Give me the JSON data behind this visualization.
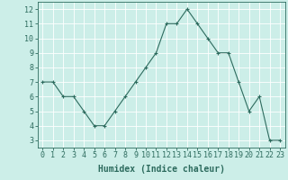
{
  "x": [
    0,
    1,
    2,
    3,
    4,
    5,
    6,
    7,
    8,
    9,
    10,
    11,
    12,
    13,
    14,
    15,
    16,
    17,
    18,
    19,
    20,
    21,
    22,
    23
  ],
  "y": [
    7,
    7,
    6,
    6,
    5,
    4,
    4,
    5,
    6,
    7,
    8,
    9,
    11,
    11,
    12,
    11,
    10,
    9,
    9,
    7,
    5,
    6,
    3,
    3
  ],
  "line_color": "#2d6b5e",
  "marker": "+",
  "marker_size": 3,
  "background_color": "#cceee8",
  "grid_color": "#ffffff",
  "xlabel": "Humidex (Indice chaleur)",
  "xlim": [
    -0.5,
    23.5
  ],
  "ylim": [
    2.5,
    12.5
  ],
  "yticks": [
    3,
    4,
    5,
    6,
    7,
    8,
    9,
    10,
    11,
    12
  ],
  "xticks": [
    0,
    1,
    2,
    3,
    4,
    5,
    6,
    7,
    8,
    9,
    10,
    11,
    12,
    13,
    14,
    15,
    16,
    17,
    18,
    19,
    20,
    21,
    22,
    23
  ],
  "tick_color": "#2d6b5e",
  "label_color": "#2d6b5e",
  "label_fontsize": 7,
  "tick_fontsize": 6,
  "linewidth": 0.8,
  "markeredgewidth": 0.8
}
